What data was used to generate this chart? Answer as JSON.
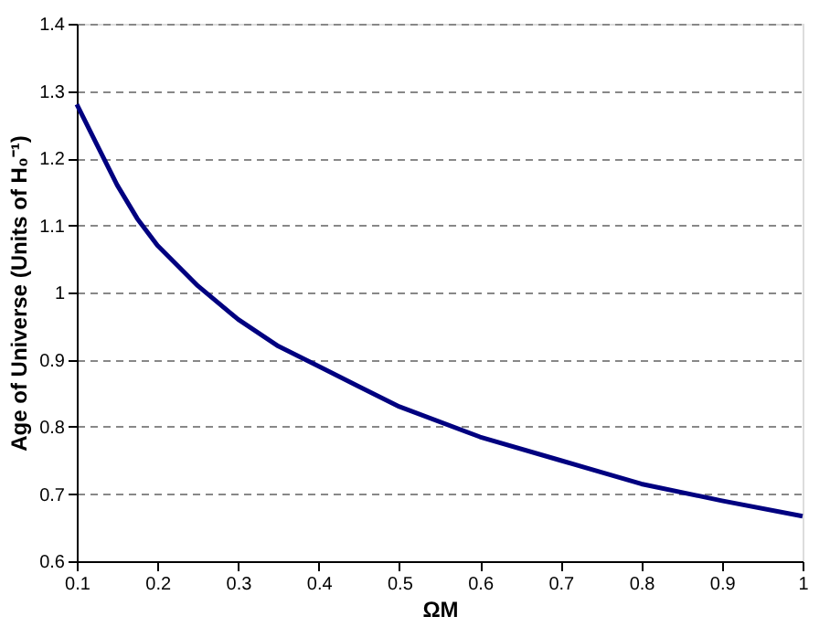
{
  "chart_data": {
    "type": "line",
    "xlabel": "ΩM",
    "ylabel": "Age of Universe (Units of H₀⁻¹)",
    "x": [
      0.1,
      0.125,
      0.15,
      0.175,
      0.2,
      0.25,
      0.3,
      0.35,
      0.4,
      0.45,
      0.5,
      0.6,
      0.7,
      0.8,
      0.9,
      1.0
    ],
    "series": [
      {
        "color": "#000080",
        "values": [
          1.28,
          1.22,
          1.16,
          1.11,
          1.07,
          1.01,
          0.96,
          0.92,
          0.89,
          0.86,
          0.83,
          0.785,
          0.75,
          0.715,
          0.69,
          0.667
        ]
      }
    ],
    "xlim": [
      0.1,
      1
    ],
    "xticks": [
      0.1,
      0.2,
      0.3,
      0.4,
      0.5,
      0.6,
      0.7,
      0.8,
      0.9,
      1
    ],
    "ylim": [
      0.6,
      1.4
    ],
    "yticks": [
      0.6,
      0.7,
      0.8,
      0.9,
      1,
      1.1,
      1.2,
      1.3,
      1.4
    ],
    "grid": "y",
    "legend": false,
    "marker": "none",
    "line_style": "solid"
  }
}
